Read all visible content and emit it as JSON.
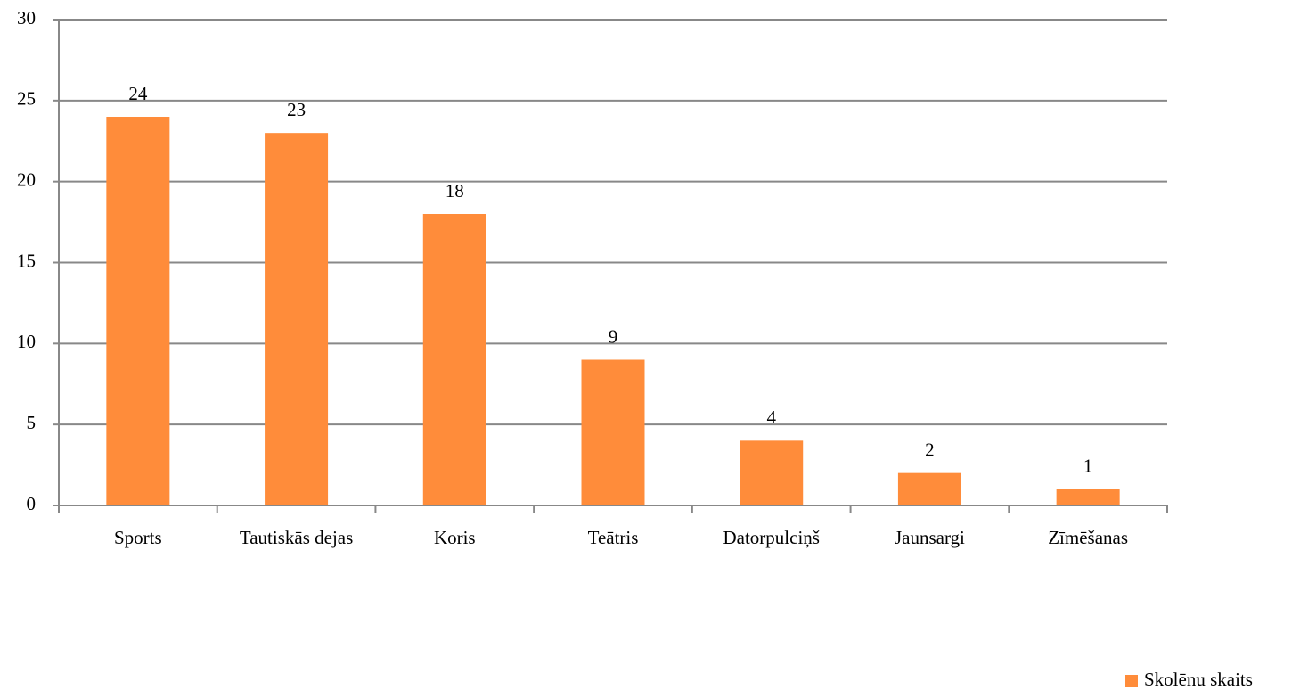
{
  "chart_data": {
    "type": "bar",
    "categories": [
      "Sports",
      "Tautiskās dejas",
      "Koris",
      "Teātris",
      "Datorpulciņš",
      "Jaunsargi",
      "Zīmēšanas"
    ],
    "series": [
      {
        "name": "Skolēnu skaits",
        "color": "#ff8c3a",
        "values": [
          24,
          23,
          18,
          9,
          4,
          2,
          1
        ]
      }
    ],
    "ylim": [
      0,
      30
    ],
    "yticks": [
      0,
      5,
      10,
      15,
      20,
      25,
      30
    ],
    "grid": true,
    "legend": "bottom-right"
  }
}
